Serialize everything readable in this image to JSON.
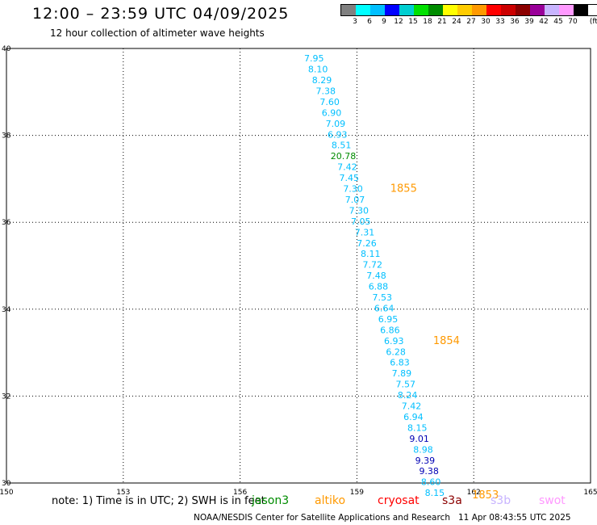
{
  "header": {
    "title": "12:00 – 23:59 UTC 04/09/2025",
    "subtitle": "12 hour collection of altimeter wave heights"
  },
  "colorbar": {
    "colors": [
      "#808080",
      "#00ffff",
      "#00bfff",
      "#0000ff",
      "#00ced1",
      "#00e000",
      "#008c00",
      "#ffff00",
      "#ffcc00",
      "#ff9900",
      "#ff0000",
      "#cc0000",
      "#8b0000",
      "#990099",
      "#c8b4ff",
      "#ff99ff",
      "#000000"
    ],
    "labels": [
      "3",
      "6",
      "9",
      "12",
      "15",
      "18",
      "21",
      "24",
      "27",
      "30",
      "33",
      "36",
      "39",
      "42",
      "45",
      "70",
      "(ft)"
    ]
  },
  "map": {
    "x_ticks": [
      "150",
      "153",
      "156",
      "159",
      "162",
      "165"
    ],
    "y_ticks": [
      "40",
      "38",
      "36",
      "34",
      "32",
      "30"
    ],
    "xlim": [
      150,
      165
    ],
    "ylim": [
      30,
      40
    ],
    "grid": "dotted",
    "observations": [
      {
        "lon": 157.9,
        "lat": 39.7,
        "value": "7.95",
        "color": "#00bfff"
      },
      {
        "lon": 158.0,
        "lat": 39.45,
        "value": "8.10",
        "color": "#00bfff"
      },
      {
        "lon": 158.1,
        "lat": 39.2,
        "value": "8.29",
        "color": "#00bfff"
      },
      {
        "lon": 158.2,
        "lat": 38.95,
        "value": "7.38",
        "color": "#00bfff"
      },
      {
        "lon": 158.3,
        "lat": 38.7,
        "value": "7.60",
        "color": "#00bfff"
      },
      {
        "lon": 158.35,
        "lat": 38.45,
        "value": "6.90",
        "color": "#00bfff"
      },
      {
        "lon": 158.45,
        "lat": 38.2,
        "value": "7.09",
        "color": "#00bfff"
      },
      {
        "lon": 158.5,
        "lat": 37.95,
        "value": "6.93",
        "color": "#00bfff"
      },
      {
        "lon": 158.6,
        "lat": 37.7,
        "value": "8.51",
        "color": "#00bfff"
      },
      {
        "lon": 158.65,
        "lat": 37.45,
        "value": "20.78",
        "color": "#008c00"
      },
      {
        "lon": 158.75,
        "lat": 37.2,
        "value": "7.42",
        "color": "#00bfff"
      },
      {
        "lon": 158.8,
        "lat": 36.95,
        "value": "7.45",
        "color": "#00bfff"
      },
      {
        "lon": 158.9,
        "lat": 36.7,
        "value": "7.30",
        "color": "#00bfff"
      },
      {
        "lon": 158.95,
        "lat": 36.45,
        "value": "7.07",
        "color": "#00bfff"
      },
      {
        "lon": 159.05,
        "lat": 36.2,
        "value": "7.30",
        "color": "#00bfff"
      },
      {
        "lon": 159.1,
        "lat": 35.95,
        "value": "7.05",
        "color": "#00bfff"
      },
      {
        "lon": 159.2,
        "lat": 35.7,
        "value": "7.31",
        "color": "#00bfff"
      },
      {
        "lon": 159.25,
        "lat": 35.45,
        "value": "7.26",
        "color": "#00bfff"
      },
      {
        "lon": 159.35,
        "lat": 35.2,
        "value": "8.11",
        "color": "#00bfff"
      },
      {
        "lon": 159.4,
        "lat": 34.95,
        "value": "7.72",
        "color": "#00bfff"
      },
      {
        "lon": 159.5,
        "lat": 34.7,
        "value": "7.48",
        "color": "#00bfff"
      },
      {
        "lon": 159.55,
        "lat": 34.45,
        "value": "6.88",
        "color": "#00bfff"
      },
      {
        "lon": 159.65,
        "lat": 34.2,
        "value": "7.53",
        "color": "#00bfff"
      },
      {
        "lon": 159.7,
        "lat": 33.95,
        "value": "6.64",
        "color": "#00bfff"
      },
      {
        "lon": 159.8,
        "lat": 33.7,
        "value": "6.95",
        "color": "#00bfff"
      },
      {
        "lon": 159.85,
        "lat": 33.45,
        "value": "6.86",
        "color": "#00bfff"
      },
      {
        "lon": 159.95,
        "lat": 33.2,
        "value": "6.93",
        "color": "#00bfff"
      },
      {
        "lon": 160.0,
        "lat": 32.95,
        "value": "6.28",
        "color": "#00bfff"
      },
      {
        "lon": 160.1,
        "lat": 32.7,
        "value": "6.83",
        "color": "#00bfff"
      },
      {
        "lon": 160.15,
        "lat": 32.45,
        "value": "7.89",
        "color": "#00bfff"
      },
      {
        "lon": 160.25,
        "lat": 32.2,
        "value": "7.57",
        "color": "#00bfff"
      },
      {
        "lon": 160.3,
        "lat": 31.95,
        "value": "8.24",
        "color": "#00bfff"
      },
      {
        "lon": 160.4,
        "lat": 31.7,
        "value": "7.42",
        "color": "#00bfff"
      },
      {
        "lon": 160.45,
        "lat": 31.45,
        "value": "6.94",
        "color": "#00bfff"
      },
      {
        "lon": 160.55,
        "lat": 31.2,
        "value": "8.15",
        "color": "#00bfff"
      },
      {
        "lon": 160.6,
        "lat": 30.95,
        "value": "9.01",
        "color": "#0000b4"
      },
      {
        "lon": 160.7,
        "lat": 30.7,
        "value": "8.98",
        "color": "#00bfff"
      },
      {
        "lon": 160.75,
        "lat": 30.45,
        "value": "9.39",
        "color": "#0000b4"
      },
      {
        "lon": 160.85,
        "lat": 30.2,
        "value": "9.38",
        "color": "#0000b4"
      },
      {
        "lon": 160.9,
        "lat": 29.95,
        "value": "8.60",
        "color": "#00bfff"
      },
      {
        "lon": 161.0,
        "lat": 29.7,
        "value": "8.15",
        "color": "#00bfff"
      }
    ],
    "time_labels": [
      {
        "lon": 160.2,
        "lat": 36.7,
        "text": "1855"
      },
      {
        "lon": 161.3,
        "lat": 33.2,
        "text": "1854"
      },
      {
        "lon": 162.3,
        "lat": 29.65,
        "text": "1853"
      }
    ],
    "time_label_color": "#ff9900"
  },
  "footer": {
    "note": "note: 1) Time is in UTC; 2) SWH is in feet",
    "satellites": [
      {
        "name": "jason3",
        "color": "#008c00"
      },
      {
        "name": "altiko",
        "color": "#ff9900"
      },
      {
        "name": "cryosat",
        "color": "#ff0000"
      },
      {
        "name": "s3a",
        "color": "#8b0000"
      },
      {
        "name": "s3b",
        "color": "#c8b4ff"
      },
      {
        "name": "swot",
        "color": "#ff99ff"
      }
    ],
    "credit": "NOAA/NESDIS Center for Satellite Applications and Research",
    "generated": "11 Apr 08:43:55 UTC 2025"
  }
}
